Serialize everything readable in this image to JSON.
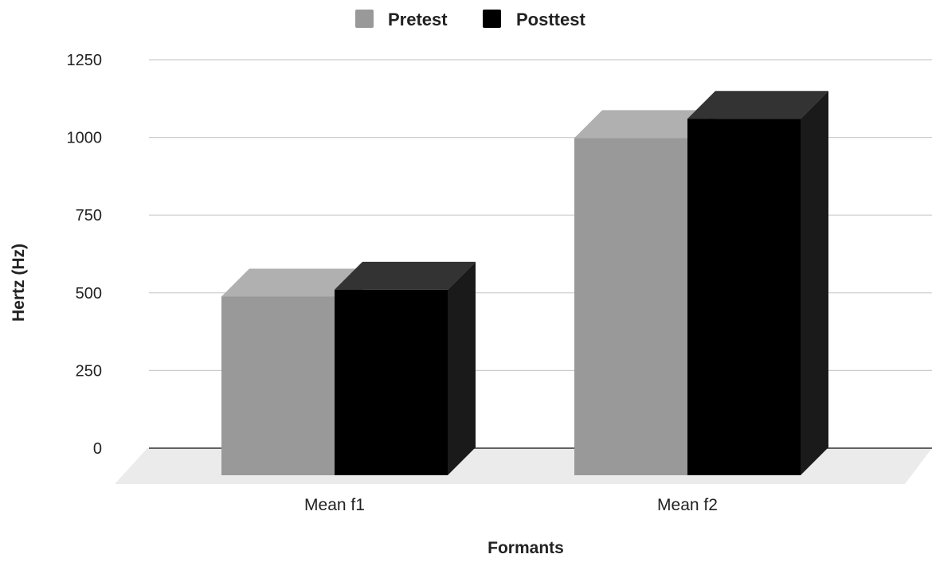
{
  "chart_data": {
    "type": "bar",
    "style": "3d-column",
    "categories": [
      "Mean f1",
      "Mean f2"
    ],
    "series": [
      {
        "name": "Pretest",
        "values": [
          575,
          1085
        ],
        "color": "#999999",
        "top_color": "#b0b0b0",
        "side_color": "#7a7a7a"
      },
      {
        "name": "Posttest",
        "values": [
          597,
          1147
        ],
        "color": "#000000",
        "top_color": "#333333",
        "side_color": "#1a1a1a"
      }
    ],
    "xlabel": "Formants",
    "ylabel": "Hertz (Hz)",
    "ylim": [
      0,
      1250
    ],
    "yticks": [
      "0",
      "250",
      "500",
      "750",
      "1000",
      "1250"
    ],
    "ytick_values": [
      0,
      250,
      500,
      750,
      1000,
      1250
    ],
    "grid": true,
    "legend_position": "top-center",
    "colors": {
      "gridline": "#cccccc",
      "baseline": "#333333",
      "floor": "#ebebeb"
    }
  }
}
